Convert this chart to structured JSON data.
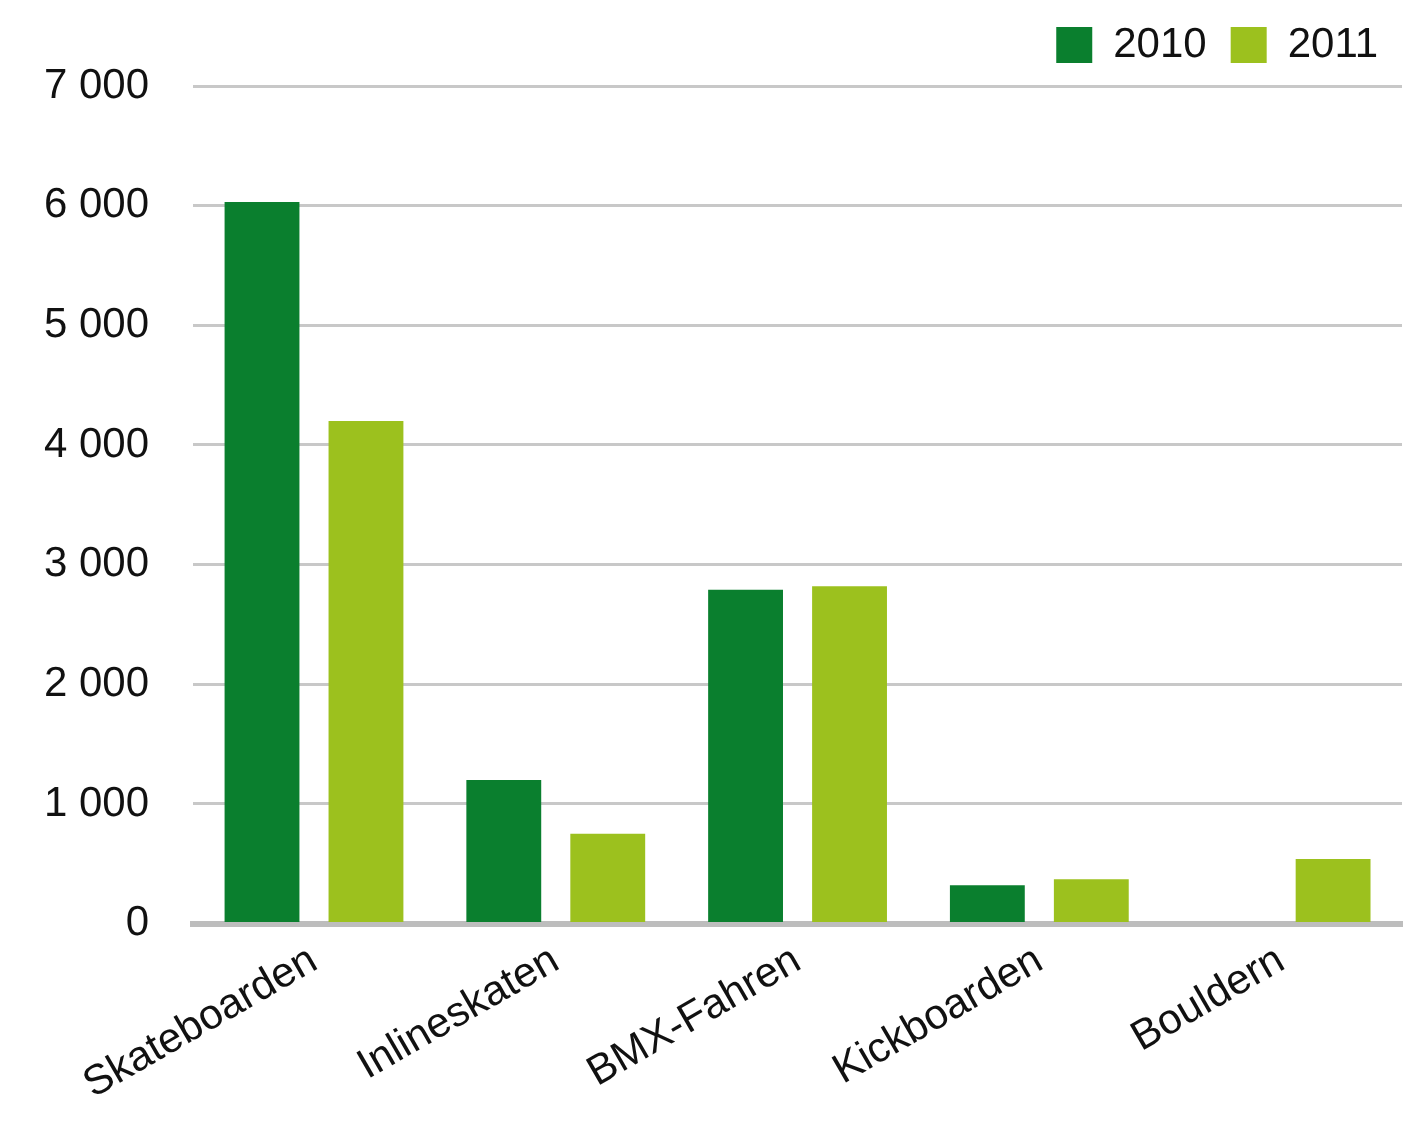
{
  "chart_data": {
    "type": "bar",
    "categories": [
      "Skateboarden",
      "Inlineskaten",
      "BMX-Fahren",
      "Kickboarden",
      "Bouldern"
    ],
    "series": [
      {
        "name": "2010",
        "color": "#0a7f2e",
        "values": [
          6030,
          1200,
          2790,
          320,
          null
        ]
      },
      {
        "name": "2011",
        "color": "#9cc11e",
        "values": [
          4200,
          750,
          2820,
          370,
          540
        ]
      }
    ],
    "ylim": [
      0,
      7000
    ],
    "yticks": [
      0,
      {
        "value": 1000,
        "label": "1 000"
      },
      {
        "value": 2000,
        "label": "2 000"
      },
      {
        "value": 3000,
        "label": "3 000"
      },
      {
        "value": 4000,
        "label": "4 000"
      },
      {
        "value": 5000,
        "label": "5 000"
      },
      {
        "value": 6000,
        "label": "6 000"
      },
      {
        "value": 7000,
        "label": "7 000"
      }
    ],
    "grid": "y",
    "legend": "top right"
  }
}
